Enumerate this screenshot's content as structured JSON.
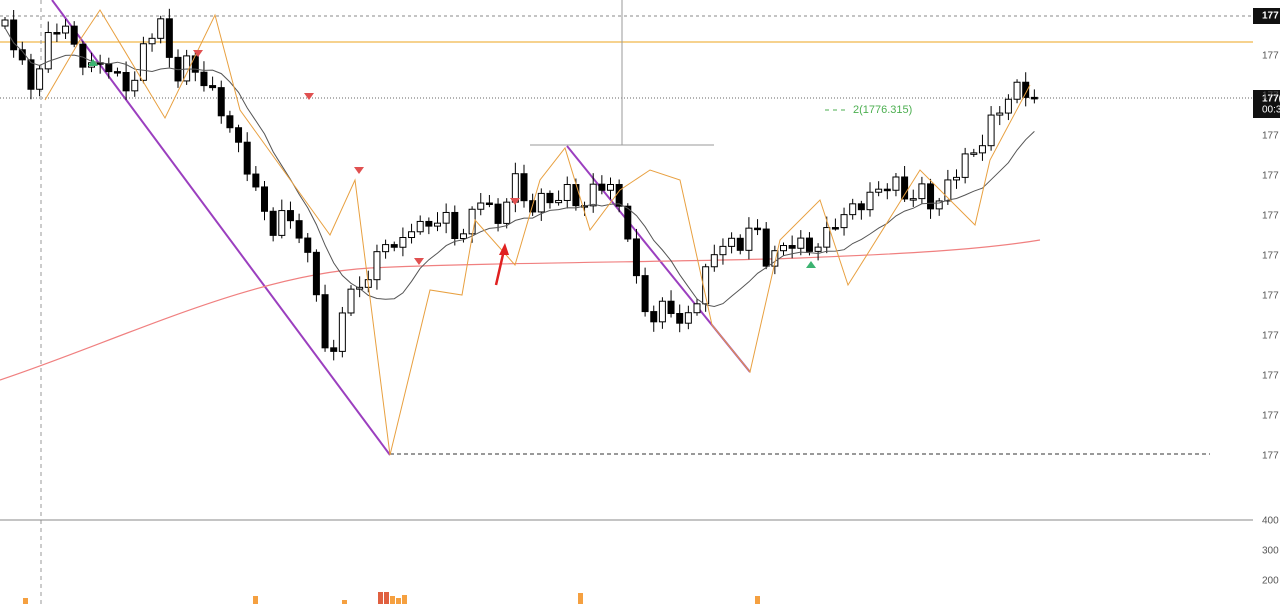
{
  "price_axis": {
    "labels": [
      "177",
      "177",
      "177",
      "177",
      "177",
      "177",
      "177",
      "177",
      "177",
      "177",
      "177",
      "177"
    ]
  },
  "current_price": {
    "price": "177(",
    "timer": "00:3"
  },
  "volume_axis": {
    "labels": [
      "400",
      "300",
      "200"
    ]
  },
  "annotation": {
    "text": "2(1776.315)"
  }
}
